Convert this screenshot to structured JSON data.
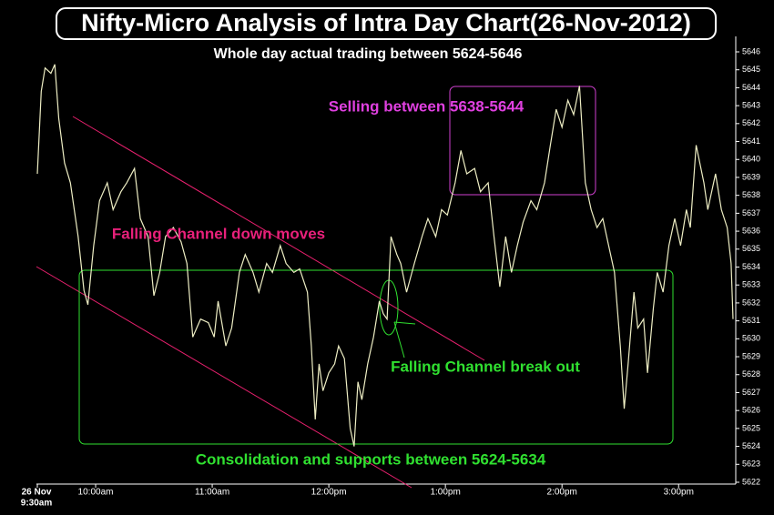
{
  "chart_data": {
    "type": "line",
    "title": "Nifty-Micro Analysis of Intra Day Chart(26-Nov-2012)",
    "subtitle": "Whole day actual trading between 5624-5646",
    "annotations": {
      "selling": "Selling between 5638-5644",
      "falling_channel": "Falling Channel down moves",
      "break_out": "Falling Channel break out",
      "consolidation": "Consolidation and supports between 5624-5634"
    },
    "date_label": "26 Nov",
    "color": "#eeeec4",
    "x": [
      0,
      2,
      4,
      7,
      9,
      11,
      14,
      17,
      21,
      24,
      26,
      29,
      32,
      36,
      39,
      43,
      46,
      50,
      53,
      57,
      60,
      63,
      66,
      70,
      74,
      77,
      80,
      84,
      88,
      91,
      93,
      97,
      100,
      104,
      107,
      111,
      114,
      118,
      121,
      125,
      128,
      132,
      135,
      139,
      141,
      143,
      145,
      147,
      150,
      153,
      155,
      158,
      161,
      163,
      165,
      167,
      170,
      173,
      176,
      178,
      180,
      182,
      185,
      187,
      190,
      194,
      198,
      201,
      205,
      208,
      211,
      215,
      218,
      221,
      225,
      228,
      232,
      235,
      238,
      241,
      244,
      247,
      250,
      254,
      257,
      261,
      264,
      267,
      270,
      273,
      276,
      279,
      282,
      285,
      288,
      291,
      294,
      297,
      300,
      302,
      304,
      307,
      309,
      312,
      314,
      317,
      319,
      322,
      325,
      328,
      331,
      334,
      336,
      339,
      343,
      345,
      349,
      352,
      355,
      357,
      358
    ],
    "values": [
      5639.2,
      5643.8,
      5645.1,
      5644.8,
      5645.3,
      5642.3,
      5639.8,
      5638.7,
      5635.7,
      5632.7,
      5631.9,
      5635.2,
      5637.7,
      5638.7,
      5637.2,
      5638.2,
      5638.7,
      5639.5,
      5636.7,
      5635.7,
      5632.4,
      5633.7,
      5635.7,
      5636.2,
      5635.4,
      5634.2,
      5630.1,
      5631.1,
      5630.9,
      5630.1,
      5632.1,
      5629.6,
      5630.6,
      5633.7,
      5634.7,
      5633.7,
      5632.6,
      5634.2,
      5633.7,
      5635.2,
      5634.2,
      5633.7,
      5633.9,
      5632.6,
      5629.6,
      5625.5,
      5628.6,
      5627.1,
      5628.1,
      5628.6,
      5629.6,
      5628.9,
      5625.0,
      5624.0,
      5627.6,
      5626.6,
      5628.6,
      5630.1,
      5632.1,
      5631.4,
      5631.1,
      5635.7,
      5634.7,
      5634.2,
      5632.6,
      5634.2,
      5635.7,
      5636.7,
      5635.7,
      5637.2,
      5636.9,
      5638.7,
      5640.5,
      5639.2,
      5639.5,
      5638.2,
      5638.7,
      5635.7,
      5632.9,
      5635.7,
      5633.7,
      5635.2,
      5636.5,
      5637.7,
      5637.2,
      5638.7,
      5640.8,
      5642.8,
      5641.8,
      5643.3,
      5642.5,
      5644.1,
      5638.7,
      5637.2,
      5636.2,
      5636.7,
      5635.2,
      5633.7,
      5629.6,
      5626.1,
      5628.6,
      5632.6,
      5630.6,
      5631.1,
      5628.1,
      5631.7,
      5633.7,
      5632.6,
      5635.2,
      5636.7,
      5635.2,
      5637.2,
      5636.2,
      5640.8,
      5638.7,
      5637.2,
      5639.2,
      5637.2,
      5636.2,
      5634.2,
      5631.1
    ],
    "xlim": [
      0,
      358
    ],
    "xticks": [
      {
        "value": 0,
        "label": "9:30am"
      },
      {
        "value": 30,
        "label": "10:00am"
      },
      {
        "value": 90,
        "label": "11:00am"
      },
      {
        "value": 150,
        "label": "12:00pm"
      },
      {
        "value": 210,
        "label": "1:00pm"
      },
      {
        "value": 270,
        "label": "2:00pm"
      },
      {
        "value": 330,
        "label": "3:00pm"
      }
    ],
    "ylim": [
      5622,
      5646
    ],
    "yticks": [
      5622,
      5623,
      5624,
      5625,
      5626,
      5627,
      5628,
      5629,
      5630,
      5631,
      5632,
      5633,
      5634,
      5635,
      5636,
      5637,
      5638,
      5639,
      5640,
      5641,
      5642,
      5643,
      5644,
      5645,
      5646
    ]
  }
}
